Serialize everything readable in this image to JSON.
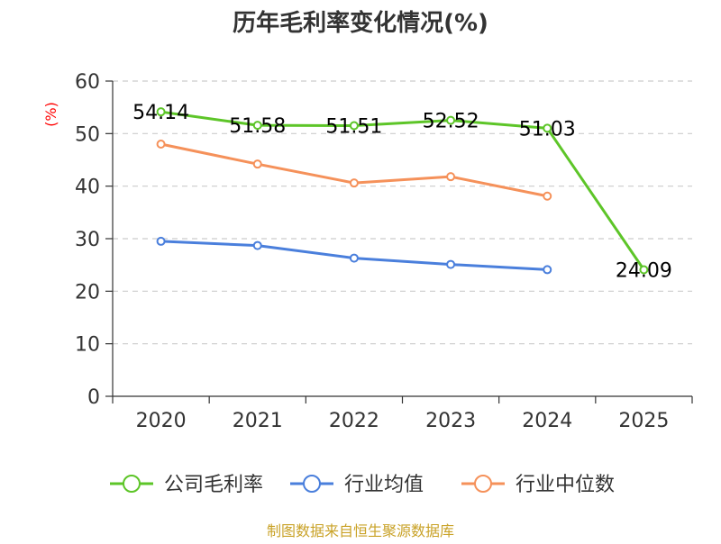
{
  "chart_data": {
    "type": "line",
    "title": "历年毛利率变化情况(%)",
    "ylabel": "(%)",
    "xlabel": "",
    "categories": [
      "2020",
      "2021",
      "2022",
      "2023",
      "2024",
      "2025"
    ],
    "ylim": [
      0,
      60
    ],
    "yticks": [
      0,
      10,
      20,
      30,
      40,
      50,
      60
    ],
    "grid": true,
    "legend_position": "bottom",
    "series": [
      {
        "name": "公司毛利率",
        "color": "#5dc528",
        "values": [
          54.14,
          51.58,
          51.51,
          52.52,
          51.03,
          24.09
        ],
        "labels": [
          "54.14",
          "51.58",
          "51.51",
          "52.52",
          "51.03",
          "24.09"
        ]
      },
      {
        "name": "行业均值",
        "color": "#4a7fdc",
        "values": [
          29.5,
          28.7,
          26.3,
          25.1,
          24.1,
          null
        ]
      },
      {
        "name": "行业中位数",
        "color": "#f5915a",
        "values": [
          48.0,
          44.2,
          40.6,
          41.8,
          38.1,
          null
        ]
      }
    ]
  },
  "footer": {
    "source": "制图数据来自恒生聚源数据库"
  }
}
